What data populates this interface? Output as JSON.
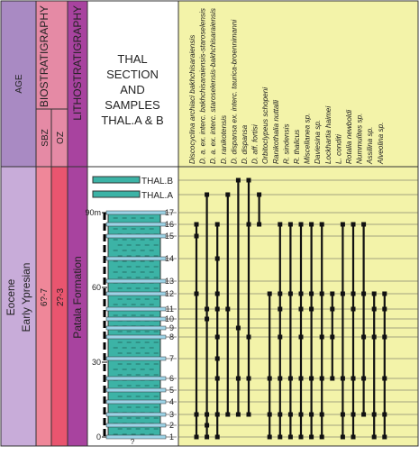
{
  "header": {
    "age": "AGE",
    "biostratigraphy": "BIOSTRATIGRAPHY",
    "sbz": "SBZ",
    "oz": "OZ",
    "lithostratigraphy": "LITHOSTRATIGRAPHY",
    "section_title": [
      "THAL",
      "SECTION",
      "AND",
      "SAMPLES",
      "THAL.A & B"
    ]
  },
  "body": {
    "epoch": "Eocene",
    "stage": "Early Ypresian",
    "sbz_zone": "6?-7",
    "oz_zone": "2?-3",
    "formation": "Patala Formation",
    "unknown_base": "?"
  },
  "section": {
    "scale_ticks": [
      0,
      30,
      60,
      {
        "value": 90,
        "label": "90m"
      }
    ],
    "samples_legend": [
      "THAL.B",
      "THAL.A"
    ]
  },
  "levels": [
    "THAL.B",
    "THAL.A",
    "17",
    "16",
    "15",
    "14",
    "13",
    "12",
    "11",
    "10",
    "9",
    "8",
    "7",
    "6",
    "5",
    "4",
    "3",
    "2",
    "1"
  ],
  "species": [
    {
      "name": "Discocyclina archiaci bakhchisaraiensis",
      "occurrences": [
        "16",
        "15",
        "12",
        "3",
        "1"
      ]
    },
    {
      "name": "D. a. ex. interc. bakhchisaraiensis-staroselensis",
      "occurrences": [
        "THAL.A",
        "11",
        "10",
        "3",
        "2",
        "1"
      ]
    },
    {
      "name": "D. a. ex. interc. staroselensis-bakhchisaraiensis",
      "occurrences": [
        "16",
        "14",
        "12",
        "11",
        "8",
        "7",
        "6",
        "3",
        "1"
      ]
    },
    {
      "name": "D. ranikotensis",
      "occurrences": [
        "THAL.A",
        "11",
        "3"
      ]
    },
    {
      "name": "D. dispansa ex. interc. taurica-broennimanni",
      "occurrences": [
        "THAL.B",
        "9",
        "6",
        "3"
      ]
    },
    {
      "name": "D. dispansa",
      "occurrences": [
        "THAL.B",
        "16",
        "8",
        "6",
        "3"
      ]
    },
    {
      "name": "D. aff. fortisi",
      "occurrences": [
        "THAL.A",
        "16"
      ]
    },
    {
      "name": "Orbitoclypeus schopeni",
      "occurrences": [
        "12",
        "6",
        "3",
        "1"
      ]
    },
    {
      "name": "Ranikothalia nuttalli",
      "occurrences": [
        "16",
        "12",
        "11",
        "8",
        "6",
        "3",
        "1"
      ]
    },
    {
      "name": "R. sindensis",
      "occurrences": [
        "16",
        "12",
        "6",
        "3",
        "1"
      ]
    },
    {
      "name": "R. thalicus",
      "occurrences": [
        "16",
        "12",
        "11",
        "8",
        "6",
        "3",
        "1"
      ]
    },
    {
      "name": "Miscellanea sp.",
      "occurrences": [
        "16",
        "12",
        "11",
        "6",
        "3",
        "1"
      ]
    },
    {
      "name": "Daviesina sp.",
      "occurrences": [
        "16",
        "12",
        "8",
        "6",
        "3",
        "1"
      ]
    },
    {
      "name": "Lockhartia haimei",
      "occurrences": [
        "12",
        "11",
        "8",
        "6"
      ]
    },
    {
      "name": "L. conditi",
      "occurrences": [
        "16",
        "12",
        "6",
        "3",
        "1"
      ]
    },
    {
      "name": "Rotalia newboldi",
      "occurrences": [
        "16",
        "12",
        "11",
        "6",
        "3",
        "1"
      ]
    },
    {
      "name": "Nummulites sp.",
      "occurrences": [
        "16",
        "12",
        "8",
        "6",
        "3"
      ]
    },
    {
      "name": "Assilina sp.",
      "occurrences": [
        "12",
        "11",
        "8",
        "3",
        "1"
      ]
    },
    {
      "name": "Alveolina sp.",
      "occurrences": [
        "12",
        "11",
        "8",
        "6",
        "3",
        "1"
      ]
    }
  ]
}
